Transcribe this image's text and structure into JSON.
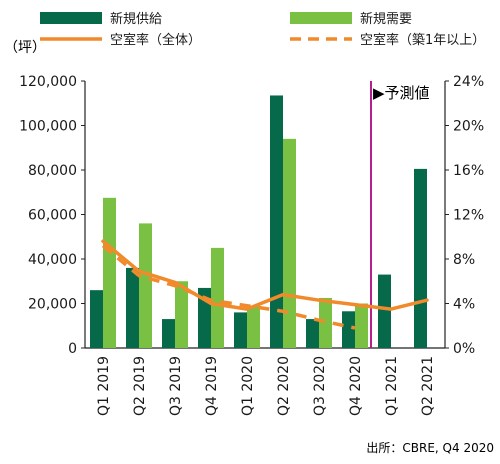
{
  "colors": {
    "supply": "#066a4a",
    "demand": "#7ac143",
    "vacancy": "#f08a2b",
    "forecast_line": "#b5208d",
    "axis": "#222222",
    "text": "#1a1a1a"
  },
  "legend": [
    {
      "key": "supply",
      "label": "新規供給",
      "kind": "bar"
    },
    {
      "key": "demand",
      "label": "新規需要",
      "kind": "bar"
    },
    {
      "key": "vacancy_all",
      "label": "空室率（全体）",
      "kind": "line"
    },
    {
      "key": "vacancy_1y",
      "label": "空室率（築1年以上）",
      "kind": "dashed"
    }
  ],
  "chart_data": {
    "type": "bar",
    "y_unit_label": "（坪）",
    "forecast_label": "▶予測値",
    "source": "出所：CBRE, Q4 2020",
    "categories": [
      "Q1 2019",
      "Q2 2019",
      "Q3 2019",
      "Q4 2019",
      "Q1 2020",
      "Q2 2020",
      "Q3 2020",
      "Q4 2020",
      "Q1 2021",
      "Q2 2021"
    ],
    "series": [
      {
        "name": "新規供給",
        "key": "supply",
        "axis": "left",
        "type": "bar",
        "values": [
          26000,
          36000,
          13000,
          27000,
          16000,
          113500,
          13000,
          16500,
          33000,
          80500
        ]
      },
      {
        "name": "新規需要",
        "key": "demand",
        "axis": "left",
        "type": "bar",
        "values": [
          67500,
          56000,
          30000,
          45000,
          19000,
          94000,
          22500,
          20000,
          null,
          null
        ]
      },
      {
        "name": "空室率（全体）",
        "key": "vacancy_all",
        "axis": "right",
        "type": "line",
        "values": [
          9.6,
          6.9,
          5.9,
          4.0,
          3.5,
          4.8,
          4.3,
          3.9,
          3.5,
          4.3
        ]
      },
      {
        "name": "空室率（築1年以上）",
        "key": "vacancy_1y",
        "axis": "right",
        "type": "dashed-line",
        "values": [
          9.2,
          6.5,
          5.6,
          4.3,
          3.8,
          3.3,
          2.5,
          1.8,
          null,
          null
        ]
      }
    ],
    "ylim_left": [
      0,
      120000
    ],
    "ylim_right": [
      0,
      24
    ],
    "yticks_left": [
      "0",
      "20,000",
      "40,000",
      "60,000",
      "80,000",
      "100,000",
      "120,000"
    ],
    "yticks_right": [
      "0%",
      "4%",
      "8%",
      "12%",
      "16%",
      "20%",
      "24%"
    ],
    "forecast_starts_after_index": 7,
    "grid": false
  }
}
